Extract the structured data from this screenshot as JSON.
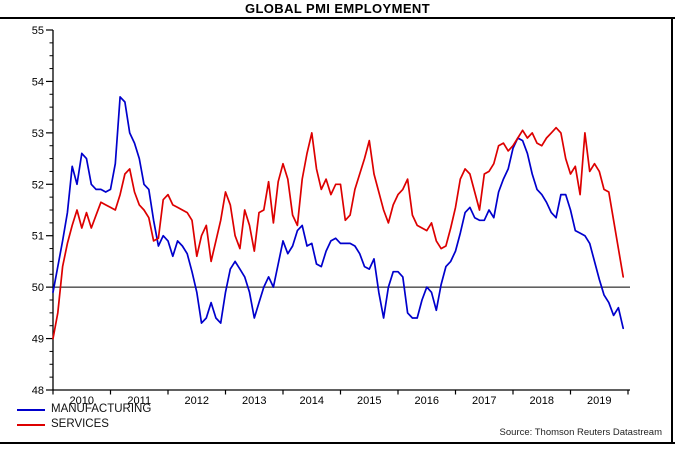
{
  "chart_data": {
    "type": "line",
    "title": "GLOBAL PMI EMPLOYMENT",
    "source_note": "Source: Thomson Reuters Datastream",
    "frequency": "monthly",
    "x_start_year": 2010,
    "x_tick_labels": [
      "2010",
      "2011",
      "2012",
      "2013",
      "2014",
      "2015",
      "2016",
      "2017",
      "2018",
      "2019"
    ],
    "y_tick_labels": [
      "48",
      "49",
      "50",
      "51",
      "52",
      "53",
      "54",
      "55"
    ],
    "ylim": [
      48,
      55
    ],
    "y_major_step": 1,
    "y_minor_step": 0.25,
    "reference_line": 50,
    "grid": "off",
    "legend_position": "bottom-left",
    "colors": {
      "manufacturing": "#0000cc",
      "services": "#dd0000",
      "axis": "#000000"
    },
    "series": [
      {
        "name": "MANUFACTURING",
        "color": "#0000cc",
        "values": [
          49.9,
          50.4,
          50.9,
          51.45,
          52.35,
          52.0,
          52.6,
          52.5,
          52.0,
          51.9,
          51.9,
          51.85,
          51.9,
          52.4,
          53.7,
          53.6,
          53.0,
          52.8,
          52.5,
          52.0,
          51.9,
          51.3,
          50.8,
          51.0,
          50.9,
          50.6,
          50.9,
          50.8,
          50.65,
          50.3,
          49.9,
          49.3,
          49.4,
          49.7,
          49.4,
          49.3,
          49.9,
          50.35,
          50.5,
          50.35,
          50.2,
          49.9,
          49.4,
          49.7,
          50.0,
          50.2,
          50.0,
          50.45,
          50.9,
          50.65,
          50.8,
          51.1,
          51.2,
          50.8,
          50.85,
          50.45,
          50.4,
          50.7,
          50.9,
          50.95,
          50.85,
          50.85,
          50.85,
          50.8,
          50.65,
          50.4,
          50.35,
          50.55,
          49.9,
          49.4,
          50.0,
          50.3,
          50.3,
          50.2,
          49.5,
          49.4,
          49.4,
          49.75,
          50.0,
          49.9,
          49.55,
          50.05,
          50.4,
          50.5,
          50.7,
          51.05,
          51.45,
          51.55,
          51.35,
          51.3,
          51.3,
          51.5,
          51.35,
          51.85,
          52.1,
          52.3,
          52.7,
          52.9,
          52.85,
          52.6,
          52.2,
          51.9,
          51.8,
          51.65,
          51.45,
          51.35,
          51.8,
          51.8,
          51.5,
          51.1,
          51.05,
          51.0,
          50.85,
          50.5,
          50.15,
          49.85,
          49.7,
          49.45,
          49.6,
          49.2
        ]
      },
      {
        "name": "SERVICES",
        "color": "#dd0000",
        "values": [
          49.0,
          49.5,
          50.4,
          50.85,
          51.2,
          51.5,
          51.15,
          51.45,
          51.15,
          51.4,
          51.65,
          51.6,
          51.55,
          51.5,
          51.8,
          52.2,
          52.3,
          51.85,
          51.6,
          51.5,
          51.35,
          50.9,
          50.95,
          51.7,
          51.8,
          51.6,
          51.55,
          51.5,
          51.45,
          51.3,
          50.6,
          51.0,
          51.2,
          50.5,
          50.9,
          51.3,
          51.85,
          51.6,
          51.0,
          50.75,
          51.5,
          51.2,
          50.7,
          51.45,
          51.5,
          52.05,
          51.25,
          52.05,
          52.4,
          52.1,
          51.4,
          51.2,
          52.1,
          52.6,
          53.0,
          52.3,
          51.9,
          52.1,
          51.8,
          52.0,
          52.0,
          51.3,
          51.4,
          51.9,
          52.2,
          52.5,
          52.85,
          52.2,
          51.85,
          51.5,
          51.25,
          51.6,
          51.8,
          51.9,
          52.1,
          51.4,
          51.2,
          51.15,
          51.1,
          51.25,
          50.9,
          50.75,
          50.8,
          51.15,
          51.55,
          52.1,
          52.3,
          52.2,
          51.85,
          51.5,
          52.2,
          52.25,
          52.4,
          52.75,
          52.8,
          52.65,
          52.75,
          52.9,
          53.05,
          52.9,
          53.0,
          52.8,
          52.75,
          52.9,
          53.0,
          53.1,
          53.0,
          52.5,
          52.2,
          52.35,
          51.8,
          53.0,
          52.25,
          52.4,
          52.25,
          51.9,
          51.85,
          51.3,
          50.75,
          50.2
        ]
      }
    ]
  }
}
